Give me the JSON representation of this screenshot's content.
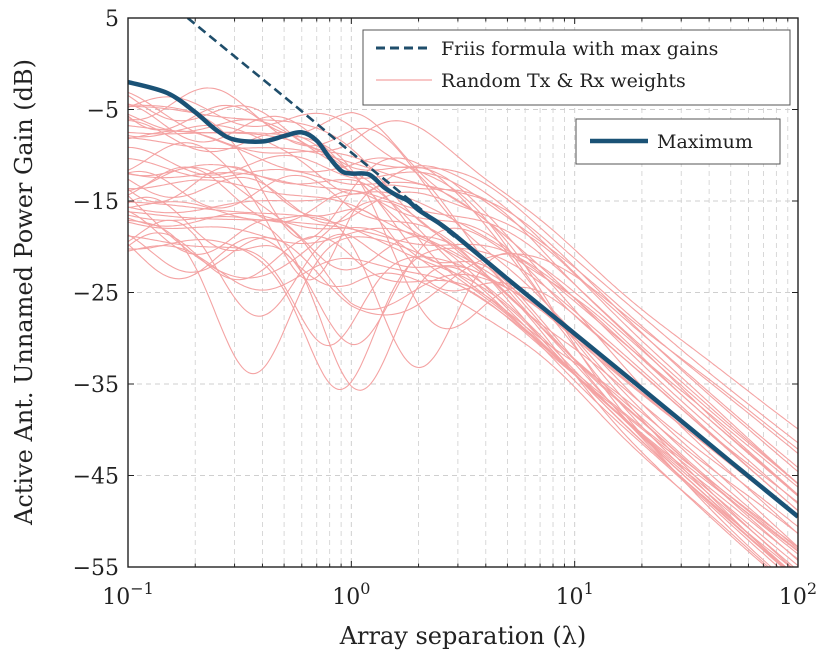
{
  "chart_data": {
    "type": "line",
    "title": "",
    "xlabel": "Array separation (λ)",
    "ylabel": "Active Ant. Unnamed Power Gain (dB)",
    "x_scale": "log",
    "xlim": [
      0.1,
      100
    ],
    "ylim": [
      -55,
      5
    ],
    "grid": true,
    "x_ticks": [
      {
        "value": 0.1,
        "base": "10",
        "exp": "−1"
      },
      {
        "value": 1,
        "base": "10",
        "exp": "0"
      },
      {
        "value": 10,
        "base": "10",
        "exp": "1"
      },
      {
        "value": 100,
        "base": "10",
        "exp": "2"
      }
    ],
    "y_ticks": [
      {
        "value": 5,
        "label": "5"
      },
      {
        "value": -5,
        "label": "−5"
      },
      {
        "value": -15,
        "label": "−15"
      },
      {
        "value": -25,
        "label": "−25"
      },
      {
        "value": -35,
        "label": "−35"
      },
      {
        "value": -45,
        "label": "−45"
      },
      {
        "value": -55,
        "label": "−55"
      }
    ],
    "legend_top": {
      "position": "top-right",
      "entries": [
        {
          "label": "Friis formula with max gains",
          "style": "dashed",
          "color": "#1f4e6b"
        },
        {
          "label": "Random Tx & Rx weights",
          "style": "solid-thin",
          "color": "#f4a3a3"
        }
      ]
    },
    "legend_bottom": {
      "position": "upper-right",
      "entries": [
        {
          "label": "Maximum",
          "style": "solid-thick",
          "color": "#1a5276"
        }
      ]
    },
    "series": [
      {
        "name": "Friis formula with max gains",
        "style": "dashed",
        "color": "#1f4e6b",
        "x": [
          0.185,
          0.3,
          0.5,
          1.0,
          1.5,
          2.0,
          3.0
        ],
        "y": [
          5.0,
          0.8,
          -3.6,
          -9.7,
          -13.2,
          -15.7,
          -19.2
        ]
      },
      {
        "name": "Maximum",
        "style": "solid-thick",
        "color": "#1a5276",
        "x": [
          0.1,
          0.15,
          0.2,
          0.25,
          0.3,
          0.4,
          0.5,
          0.6,
          0.7,
          0.8,
          0.9,
          1.0,
          1.2,
          1.4,
          1.6,
          1.8,
          2.0,
          2.5,
          3.0,
          5.0,
          10,
          20,
          50,
          100
        ],
        "y": [
          -2.0,
          -3.2,
          -5.3,
          -7.3,
          -8.3,
          -8.5,
          -7.9,
          -7.5,
          -8.4,
          -10.3,
          -11.7,
          -12.0,
          -12.1,
          -13.5,
          -14.4,
          -15.0,
          -16.0,
          -17.5,
          -19.0,
          -23.5,
          -29.5,
          -35.5,
          -43.5,
          -49.5
        ]
      }
    ],
    "random_series": {
      "name": "Random Tx & Rx weights",
      "color": "#f4a3a3",
      "count": 44
    }
  }
}
